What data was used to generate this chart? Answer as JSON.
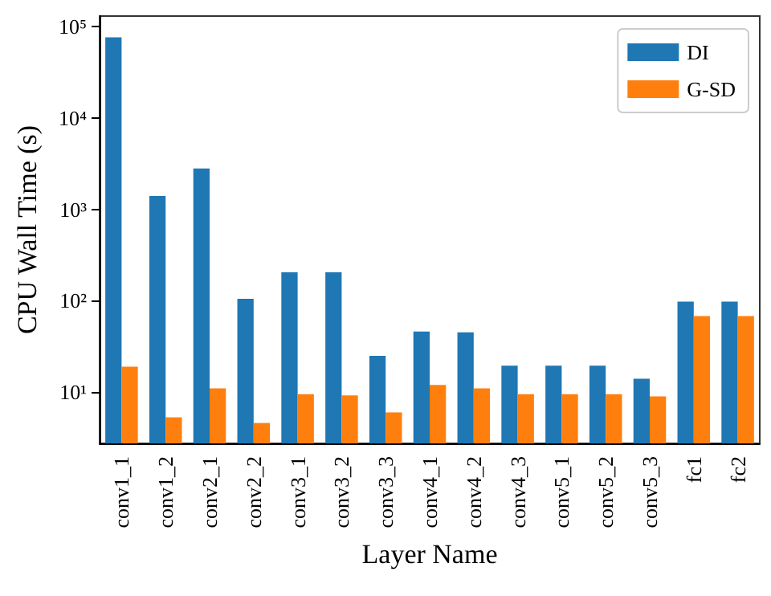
{
  "chart_data": {
    "type": "bar",
    "xlabel": "Layer Name",
    "ylabel": "CPU Wall Time (s)",
    "categories": [
      "conv1_1",
      "conv1_2",
      "conv2_1",
      "conv2_2",
      "conv3_1",
      "conv3_2",
      "conv3_3",
      "conv4_1",
      "conv4_2",
      "conv4_3",
      "conv5_1",
      "conv5_2",
      "conv5_3",
      "fc1",
      "fc2"
    ],
    "series": [
      {
        "name": "DI",
        "color": "#1f77b4",
        "values": [
          76000,
          1400,
          2800,
          105,
          205,
          205,
          25,
          46,
          45,
          19.5,
          19.5,
          19.5,
          14,
          98,
          98
        ]
      },
      {
        "name": "G-SD",
        "color": "#ff7f0e",
        "values": [
          19,
          5.3,
          11,
          4.6,
          9.5,
          9.2,
          6,
          12,
          11,
          9.5,
          9.5,
          9.5,
          9,
          68,
          68
        ]
      }
    ],
    "log": "y",
    "ylim": [
      2.75,
      130000
    ],
    "yticks": [
      {
        "value": 10,
        "label": "10¹"
      },
      {
        "value": 100,
        "label": "10²"
      },
      {
        "value": 1000,
        "label": "10³"
      },
      {
        "value": 10000,
        "label": "10⁴"
      },
      {
        "value": 100000,
        "label": "10⁵"
      }
    ],
    "grid": false,
    "legend": "top right"
  }
}
